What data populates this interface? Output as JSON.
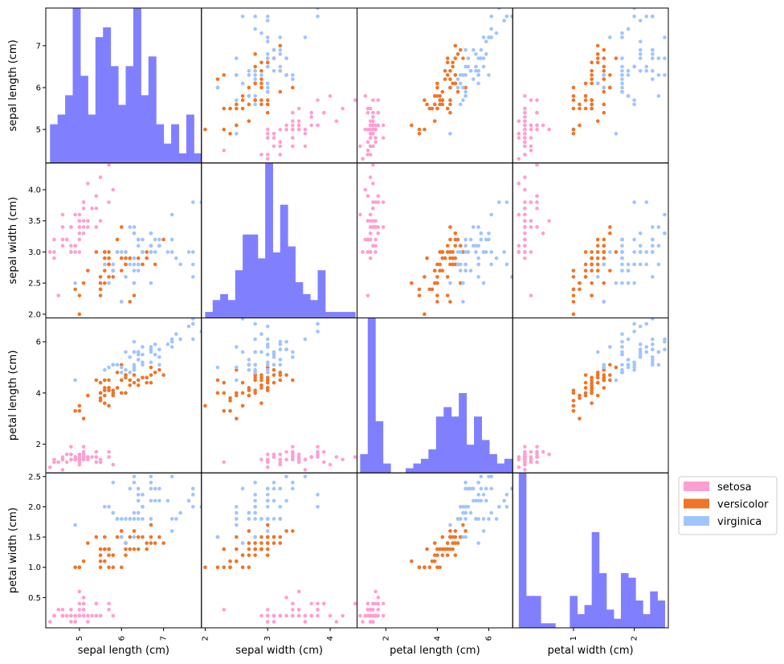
{
  "chart_data": {
    "type": "scatter",
    "variables": [
      "sepal length (cm)",
      "sepal width (cm)",
      "petal length (cm)",
      "petal width (cm)"
    ],
    "ranges": [
      [
        4.2,
        7.9
      ],
      [
        1.94,
        4.43
      ],
      [
        0.88,
        6.93
      ],
      [
        0.0,
        2.56
      ]
    ],
    "ticks": [
      [
        5,
        6,
        7
      ],
      [
        2.0,
        2.5,
        3.0,
        3.5,
        4.0
      ],
      [
        2,
        4,
        6
      ],
      [
        0.5,
        1.0,
        1.5,
        2.0,
        2.5
      ]
    ],
    "bottom_ticks": [
      [
        5,
        6,
        7
      ],
      [
        2,
        3,
        4
      ],
      [
        2,
        4,
        6
      ],
      [
        1,
        2
      ]
    ],
    "tick_labels": {
      "left": [
        [
          "5",
          "6",
          "7"
        ],
        [
          "2.0",
          "2.5",
          "3.0",
          "3.5",
          "4.0"
        ],
        [
          "2",
          "4",
          "6"
        ],
        [
          "0.5",
          "1.0",
          "1.5",
          "2.0",
          "2.5"
        ]
      ],
      "bottom": [
        [
          "5",
          "6",
          "7"
        ],
        [
          "2",
          "3",
          "4"
        ],
        [
          "2",
          "4",
          "6"
        ],
        [
          "1",
          "2"
        ]
      ]
    },
    "histogram_bins": 20,
    "histogram_color": "#8080ff",
    "series": [
      {
        "name": "setosa",
        "color": "#ff9fd1",
        "points": [
          [
            5.1,
            3.5,
            1.4,
            0.2
          ],
          [
            4.9,
            3.0,
            1.4,
            0.2
          ],
          [
            4.7,
            3.2,
            1.3,
            0.2
          ],
          [
            4.6,
            3.1,
            1.5,
            0.2
          ],
          [
            5.0,
            3.6,
            1.4,
            0.2
          ],
          [
            5.4,
            3.9,
            1.7,
            0.4
          ],
          [
            4.6,
            3.4,
            1.4,
            0.3
          ],
          [
            5.0,
            3.4,
            1.5,
            0.2
          ],
          [
            4.4,
            2.9,
            1.4,
            0.2
          ],
          [
            4.9,
            3.1,
            1.5,
            0.1
          ],
          [
            5.4,
            3.7,
            1.5,
            0.2
          ],
          [
            4.8,
            3.4,
            1.6,
            0.2
          ],
          [
            4.8,
            3.0,
            1.4,
            0.1
          ],
          [
            4.3,
            3.0,
            1.1,
            0.1
          ],
          [
            5.8,
            4.0,
            1.2,
            0.2
          ],
          [
            5.7,
            4.4,
            1.5,
            0.4
          ],
          [
            5.4,
            3.9,
            1.3,
            0.4
          ],
          [
            5.1,
            3.5,
            1.4,
            0.3
          ],
          [
            5.7,
            3.8,
            1.7,
            0.3
          ],
          [
            5.1,
            3.8,
            1.5,
            0.3
          ],
          [
            5.4,
            3.4,
            1.7,
            0.2
          ],
          [
            5.1,
            3.7,
            1.5,
            0.4
          ],
          [
            4.6,
            3.6,
            1.0,
            0.2
          ],
          [
            5.1,
            3.3,
            1.7,
            0.5
          ],
          [
            4.8,
            3.4,
            1.9,
            0.2
          ],
          [
            5.0,
            3.0,
            1.6,
            0.2
          ],
          [
            5.0,
            3.4,
            1.6,
            0.4
          ],
          [
            5.2,
            3.5,
            1.5,
            0.2
          ],
          [
            5.2,
            3.4,
            1.4,
            0.2
          ],
          [
            4.7,
            3.2,
            1.6,
            0.2
          ],
          [
            4.8,
            3.1,
            1.6,
            0.2
          ],
          [
            5.4,
            3.4,
            1.5,
            0.4
          ],
          [
            5.2,
            4.1,
            1.5,
            0.1
          ],
          [
            5.5,
            4.2,
            1.4,
            0.2
          ],
          [
            4.9,
            3.1,
            1.5,
            0.2
          ],
          [
            5.0,
            3.2,
            1.2,
            0.2
          ],
          [
            5.5,
            3.5,
            1.3,
            0.2
          ],
          [
            4.9,
            3.6,
            1.4,
            0.1
          ],
          [
            4.4,
            3.0,
            1.3,
            0.2
          ],
          [
            5.1,
            3.4,
            1.5,
            0.2
          ],
          [
            5.0,
            3.5,
            1.3,
            0.3
          ],
          [
            4.5,
            2.3,
            1.3,
            0.3
          ],
          [
            4.4,
            3.2,
            1.3,
            0.2
          ],
          [
            5.0,
            3.5,
            1.6,
            0.6
          ],
          [
            5.1,
            3.8,
            1.9,
            0.4
          ],
          [
            4.8,
            3.0,
            1.4,
            0.3
          ],
          [
            5.1,
            3.8,
            1.6,
            0.2
          ],
          [
            4.6,
            3.2,
            1.4,
            0.2
          ],
          [
            5.3,
            3.7,
            1.5,
            0.2
          ],
          [
            5.0,
            3.3,
            1.4,
            0.2
          ]
        ]
      },
      {
        "name": "versicolor",
        "color": "#f07427",
        "points": [
          [
            7.0,
            3.2,
            4.7,
            1.4
          ],
          [
            6.4,
            3.2,
            4.5,
            1.5
          ],
          [
            6.9,
            3.1,
            4.9,
            1.5
          ],
          [
            5.5,
            2.3,
            4.0,
            1.3
          ],
          [
            6.5,
            2.8,
            4.6,
            1.5
          ],
          [
            5.7,
            2.8,
            4.5,
            1.3
          ],
          [
            6.3,
            3.3,
            4.7,
            1.6
          ],
          [
            4.9,
            2.4,
            3.3,
            1.0
          ],
          [
            6.6,
            2.9,
            4.6,
            1.3
          ],
          [
            5.2,
            2.7,
            3.9,
            1.4
          ],
          [
            5.0,
            2.0,
            3.5,
            1.0
          ],
          [
            5.9,
            3.0,
            4.2,
            1.5
          ],
          [
            6.0,
            2.2,
            4.0,
            1.0
          ],
          [
            6.1,
            2.9,
            4.7,
            1.4
          ],
          [
            5.6,
            2.9,
            3.6,
            1.3
          ],
          [
            6.7,
            3.1,
            4.4,
            1.4
          ],
          [
            5.6,
            3.0,
            4.5,
            1.5
          ],
          [
            5.8,
            2.7,
            4.1,
            1.0
          ],
          [
            6.2,
            2.2,
            4.5,
            1.5
          ],
          [
            5.6,
            2.5,
            3.9,
            1.1
          ],
          [
            5.9,
            3.2,
            4.8,
            1.8
          ],
          [
            6.1,
            2.8,
            4.0,
            1.3
          ],
          [
            6.3,
            2.5,
            4.9,
            1.5
          ],
          [
            6.1,
            2.8,
            4.7,
            1.2
          ],
          [
            6.4,
            2.9,
            4.3,
            1.3
          ],
          [
            6.6,
            3.0,
            4.4,
            1.4
          ],
          [
            6.8,
            2.8,
            4.8,
            1.4
          ],
          [
            6.7,
            3.0,
            5.0,
            1.7
          ],
          [
            6.0,
            2.9,
            4.5,
            1.5
          ],
          [
            5.7,
            2.6,
            3.5,
            1.0
          ],
          [
            5.5,
            2.4,
            3.8,
            1.1
          ],
          [
            5.5,
            2.4,
            3.7,
            1.0
          ],
          [
            5.8,
            2.7,
            3.9,
            1.2
          ],
          [
            6.0,
            2.7,
            5.1,
            1.6
          ],
          [
            5.4,
            3.0,
            4.5,
            1.5
          ],
          [
            6.0,
            3.4,
            4.5,
            1.6
          ],
          [
            6.7,
            3.1,
            4.7,
            1.5
          ],
          [
            6.3,
            2.3,
            4.4,
            1.3
          ],
          [
            5.6,
            3.0,
            4.1,
            1.3
          ],
          [
            5.5,
            2.5,
            4.0,
            1.3
          ],
          [
            5.5,
            2.6,
            4.4,
            1.2
          ],
          [
            6.1,
            3.0,
            4.6,
            1.4
          ],
          [
            5.8,
            2.6,
            4.0,
            1.2
          ],
          [
            5.0,
            2.3,
            3.3,
            1.0
          ],
          [
            5.6,
            2.7,
            4.2,
            1.3
          ],
          [
            5.7,
            3.0,
            4.2,
            1.2
          ],
          [
            5.7,
            2.9,
            4.2,
            1.3
          ],
          [
            6.2,
            2.9,
            4.3,
            1.3
          ],
          [
            5.1,
            2.5,
            3.0,
            1.1
          ],
          [
            5.7,
            2.8,
            4.1,
            1.3
          ]
        ]
      },
      {
        "name": "virginica",
        "color": "#a0c4ff",
        "points": [
          [
            6.3,
            3.3,
            6.0,
            2.5
          ],
          [
            5.8,
            2.7,
            5.1,
            1.9
          ],
          [
            7.1,
            3.0,
            5.9,
            2.1
          ],
          [
            6.3,
            2.9,
            5.6,
            1.8
          ],
          [
            6.5,
            3.0,
            5.8,
            2.2
          ],
          [
            7.6,
            3.0,
            6.6,
            2.1
          ],
          [
            4.9,
            2.5,
            4.5,
            1.7
          ],
          [
            7.3,
            2.9,
            6.3,
            1.8
          ],
          [
            6.7,
            2.5,
            5.8,
            1.8
          ],
          [
            7.2,
            3.6,
            6.1,
            2.5
          ],
          [
            6.5,
            3.2,
            5.1,
            2.0
          ],
          [
            6.4,
            2.7,
            5.3,
            1.9
          ],
          [
            6.8,
            3.0,
            5.5,
            2.1
          ],
          [
            5.7,
            2.5,
            5.0,
            2.0
          ],
          [
            5.8,
            2.8,
            5.1,
            2.4
          ],
          [
            6.4,
            3.2,
            5.3,
            2.3
          ],
          [
            6.5,
            3.0,
            5.5,
            1.8
          ],
          [
            7.7,
            3.8,
            6.7,
            2.2
          ],
          [
            7.7,
            2.6,
            6.9,
            2.3
          ],
          [
            6.0,
            2.2,
            5.0,
            1.5
          ],
          [
            6.9,
            3.2,
            5.7,
            2.3
          ],
          [
            5.6,
            2.8,
            4.9,
            2.0
          ],
          [
            7.7,
            2.8,
            6.7,
            2.0
          ],
          [
            6.3,
            2.7,
            4.9,
            1.8
          ],
          [
            6.7,
            3.3,
            5.7,
            2.1
          ],
          [
            7.2,
            3.2,
            6.0,
            1.8
          ],
          [
            6.2,
            2.8,
            4.8,
            1.8
          ],
          [
            6.1,
            3.0,
            4.9,
            1.8
          ],
          [
            6.4,
            2.8,
            5.6,
            2.1
          ],
          [
            7.2,
            3.0,
            5.8,
            1.6
          ],
          [
            7.4,
            2.8,
            6.1,
            1.9
          ],
          [
            7.9,
            3.8,
            6.4,
            2.0
          ],
          [
            6.4,
            2.8,
            5.6,
            2.2
          ],
          [
            6.3,
            2.8,
            5.1,
            1.5
          ],
          [
            6.1,
            2.6,
            5.6,
            1.4
          ],
          [
            7.7,
            3.0,
            6.1,
            2.3
          ],
          [
            6.3,
            3.4,
            5.6,
            2.4
          ],
          [
            6.4,
            3.1,
            5.5,
            1.8
          ],
          [
            6.0,
            3.0,
            4.8,
            1.8
          ],
          [
            6.9,
            3.1,
            5.4,
            2.1
          ],
          [
            6.7,
            3.1,
            5.6,
            2.4
          ],
          [
            6.9,
            3.1,
            5.1,
            2.3
          ],
          [
            5.8,
            2.7,
            5.1,
            1.9
          ],
          [
            6.8,
            3.2,
            5.9,
            2.3
          ],
          [
            6.7,
            3.3,
            5.7,
            2.5
          ],
          [
            6.7,
            3.0,
            5.2,
            2.3
          ],
          [
            6.3,
            2.5,
            5.0,
            1.9
          ],
          [
            6.5,
            3.0,
            5.2,
            2.0
          ],
          [
            6.2,
            3.4,
            5.4,
            2.3
          ],
          [
            5.9,
            3.0,
            5.1,
            1.8
          ]
        ]
      }
    ],
    "legend": {
      "placement": "right",
      "entries": [
        "setosa",
        "versicolor",
        "virginica"
      ]
    }
  }
}
